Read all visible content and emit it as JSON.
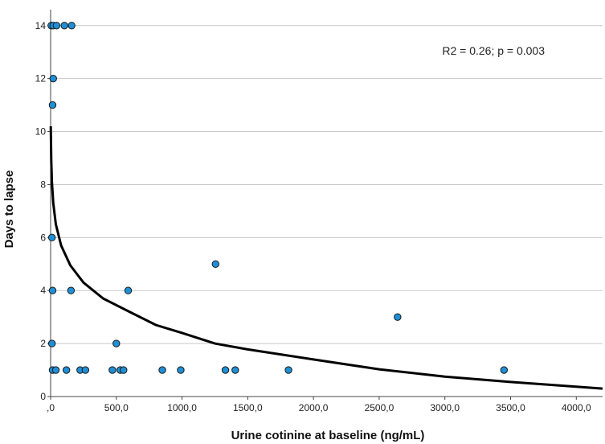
{
  "chart_data": {
    "type": "scatter",
    "title": "",
    "xlabel": "Urine cotinine at baseline (ng/mL)",
    "ylabel": "Days to lapse",
    "xlim": [
      0,
      4200
    ],
    "ylim": [
      0,
      14.6
    ],
    "x_ticks": [
      {
        "value": 0,
        "label": ",0"
      },
      {
        "value": 500,
        "label": "500,0"
      },
      {
        "value": 1000,
        "label": "1000,0"
      },
      {
        "value": 1500,
        "label": "1500,0"
      },
      {
        "value": 2000,
        "label": "2000,0"
      },
      {
        "value": 2500,
        "label": "2500,0"
      },
      {
        "value": 3000,
        "label": "3000,0"
      },
      {
        "value": 3500,
        "label": "3500,0"
      },
      {
        "value": 4000,
        "label": "4000,0"
      }
    ],
    "y_ticks": [
      {
        "value": 0,
        "label": "0"
      },
      {
        "value": 2,
        "label": "2"
      },
      {
        "value": 4,
        "label": "4"
      },
      {
        "value": 6,
        "label": "6"
      },
      {
        "value": 8,
        "label": "8"
      },
      {
        "value": 10,
        "label": "10"
      },
      {
        "value": 12,
        "label": "12"
      },
      {
        "value": 14,
        "label": "14"
      }
    ],
    "grid": "horizontal",
    "marker_color": "#1f8fd6",
    "points": [
      {
        "x": 5,
        "y": 14
      },
      {
        "x": 20,
        "y": 14
      },
      {
        "x": 45,
        "y": 14
      },
      {
        "x": 105,
        "y": 14
      },
      {
        "x": 160,
        "y": 14
      },
      {
        "x": 20,
        "y": 12
      },
      {
        "x": 15,
        "y": 11
      },
      {
        "x": 10,
        "y": 6
      },
      {
        "x": 15,
        "y": 4
      },
      {
        "x": 155,
        "y": 4
      },
      {
        "x": 590,
        "y": 4
      },
      {
        "x": 1255,
        "y": 5
      },
      {
        "x": 2640,
        "y": 3
      },
      {
        "x": 10,
        "y": 2
      },
      {
        "x": 500,
        "y": 2
      },
      {
        "x": 15,
        "y": 1
      },
      {
        "x": 40,
        "y": 1
      },
      {
        "x": 120,
        "y": 1
      },
      {
        "x": 225,
        "y": 1
      },
      {
        "x": 265,
        "y": 1
      },
      {
        "x": 470,
        "y": 1
      },
      {
        "x": 530,
        "y": 1
      },
      {
        "x": 555,
        "y": 1
      },
      {
        "x": 850,
        "y": 1
      },
      {
        "x": 990,
        "y": 1
      },
      {
        "x": 1330,
        "y": 1
      },
      {
        "x": 1405,
        "y": 1
      },
      {
        "x": 1810,
        "y": 1
      },
      {
        "x": 3450,
        "y": 1
      }
    ],
    "fit_line": {
      "type": "logarithmic",
      "color": "#000000",
      "x": [
        1,
        5,
        10,
        20,
        40,
        80,
        150,
        250,
        400,
        600,
        800,
        1000,
        1250,
        1500,
        2000,
        2500,
        3000,
        3500,
        4000,
        4200
      ],
      "y": [
        10.2,
        8.9,
        8.1,
        7.3,
        6.5,
        5.7,
        4.95,
        4.3,
        3.7,
        3.2,
        2.7,
        2.4,
        2.0,
        1.78,
        1.4,
        1.03,
        0.75,
        0.55,
        0.37,
        0.3
      ]
    },
    "annotations": [
      {
        "text": "R2 = 0.26; p = 0.003",
        "position": "top-right"
      }
    ]
  }
}
